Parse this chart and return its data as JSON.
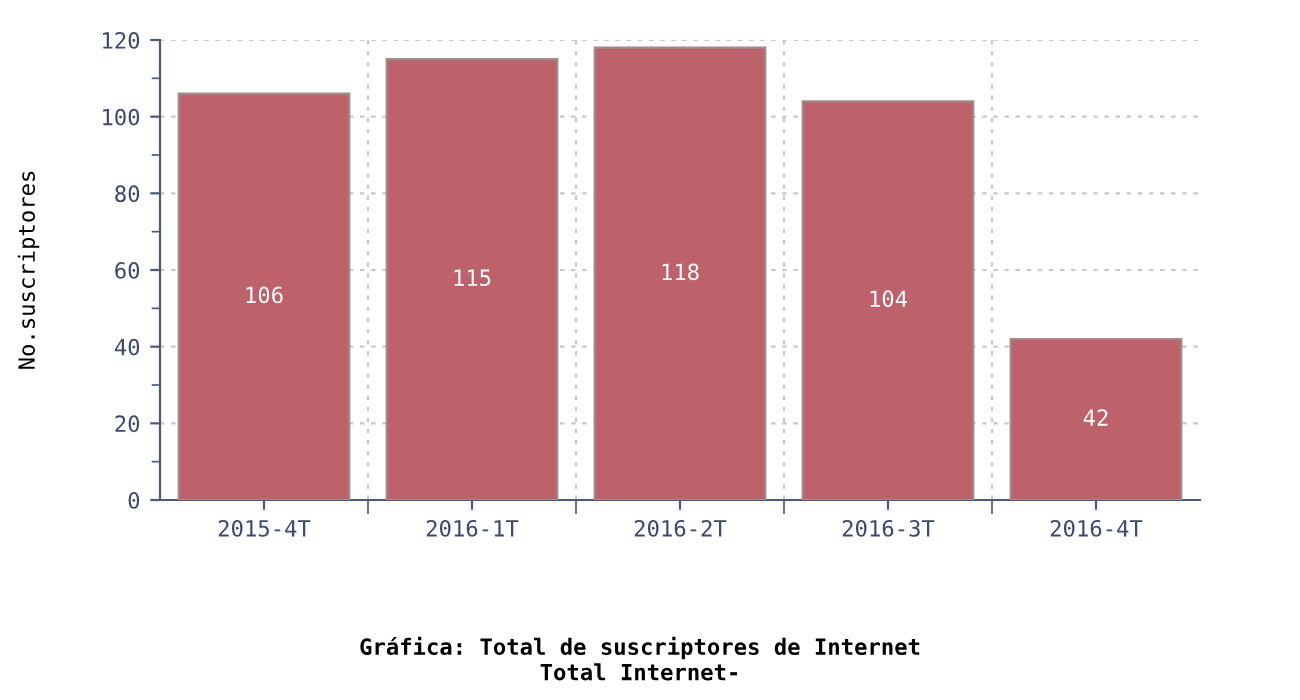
{
  "chart_data": {
    "type": "bar",
    "title": "Gráfica: Total de suscriptores de Internet",
    "subtitle": "Total Internet-",
    "ylabel": "No.suscriptores",
    "categories": [
      "2015-4T",
      "2016-1T",
      "2016-2T",
      "2016-3T",
      "2016-4T"
    ],
    "values": [
      106,
      115,
      118,
      104,
      42
    ],
    "color": "#bd616a",
    "ylim": [
      0,
      120
    ],
    "yticks": [
      0,
      20,
      40,
      60,
      80,
      100,
      120
    ],
    "grid": true,
    "data_labels": true
  }
}
